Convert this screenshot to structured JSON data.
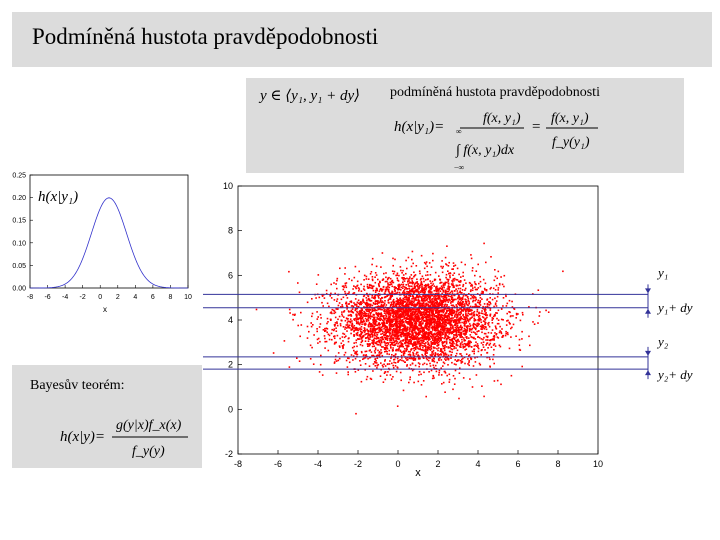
{
  "slide": {
    "title": "Podmíněná hustota pravděpodobnosti",
    "formula_box": {
      "interval": "y ∈ ⟨y₁, y₁ + dy⟩",
      "label": "podmíněná hustota pravděpodobnosti",
      "eq_lhs": "h(x|y₁)=",
      "eq_num": "f(x, y₁)",
      "eq_den": "∫ f(x, y₁)dx",
      "eq_limit_top": "∞",
      "eq_limit_bottom": "−∞",
      "eq_eq": "=",
      "eq_num2": "f(x, y₁)",
      "eq_den2": "f_y(y₁)"
    },
    "bayes": {
      "label": "Bayesův teorém:",
      "eq_lhs": "h(x|y)=",
      "eq_num": "g(y|x)f_x(x)",
      "eq_den": "f_y(y)"
    },
    "line_labels": [
      "y₁",
      "y₁+ dy",
      "y₂",
      "y₂+ dy"
    ]
  },
  "chart_data": [
    {
      "type": "line",
      "title": "h(x|y₁)",
      "xlabel": "x",
      "xlim": [
        -8,
        10
      ],
      "ylim": [
        0,
        0.25
      ],
      "xticks": [
        -8,
        -6,
        -4,
        -2,
        0,
        2,
        4,
        6,
        8,
        10
      ],
      "yticks": [
        0,
        0.05,
        0.1,
        0.15,
        0.2,
        0.25
      ],
      "ytick_labels": [
        "0.00",
        "0.05",
        "0.10",
        "0.15",
        "0.20",
        "0.25"
      ],
      "series": [
        {
          "distribution": "normal",
          "mean": 1,
          "sd": 2,
          "color": "#3333cc"
        }
      ]
    },
    {
      "type": "scatter",
      "xlabel": "x",
      "xlim": [
        -8,
        10
      ],
      "ylim": [
        -2,
        10
      ],
      "xticks": [
        -8,
        -6,
        -4,
        -2,
        0,
        2,
        4,
        6,
        8,
        10
      ],
      "yticks": [
        -2,
        0,
        2,
        4,
        6,
        8,
        10
      ],
      "point_color": "#ff0000",
      "n_points": 5000,
      "cloud": {
        "x_mean": 1,
        "x_sd": 2,
        "y_mean": 4,
        "y_sd": 1
      },
      "horizontal_lines": [
        {
          "y": 5.15,
          "label": "y₁"
        },
        {
          "y": 4.55,
          "label": "y₁+ dy"
        },
        {
          "y": 2.35,
          "label": "y₂"
        },
        {
          "y": 1.8,
          "label": "y₂+ dy"
        }
      ],
      "line_color": "#333399"
    }
  ]
}
